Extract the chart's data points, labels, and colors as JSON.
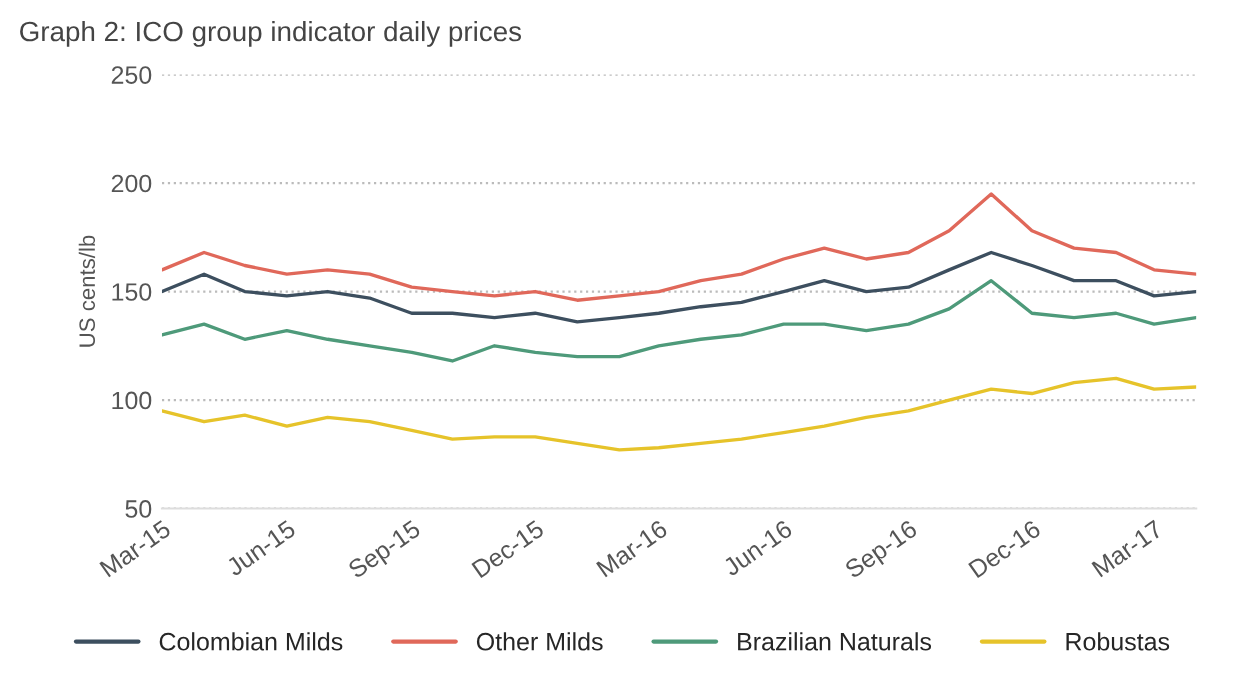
{
  "chart_data": {
    "type": "line",
    "title": "Graph 2: ICO group indicator daily prices",
    "ylabel": "US cents/lb",
    "x": [
      "2015-03",
      "2015-04",
      "2015-05",
      "2015-06",
      "2015-07",
      "2015-08",
      "2015-09",
      "2015-10",
      "2015-11",
      "2015-12",
      "2016-01",
      "2016-02",
      "2016-03",
      "2016-04",
      "2016-05",
      "2016-06",
      "2016-07",
      "2016-08",
      "2016-09",
      "2016-10",
      "2016-11",
      "2016-12",
      "2017-01",
      "2017-02",
      "2017-03",
      "2017-04"
    ],
    "series": [
      {
        "name": "Colombian Milds",
        "color": "#3d4f5f",
        "values": [
          150,
          158,
          150,
          148,
          150,
          147,
          140,
          140,
          138,
          140,
          136,
          138,
          140,
          143,
          145,
          150,
          155,
          150,
          152,
          160,
          168,
          162,
          155,
          155,
          148,
          150
        ]
      },
      {
        "name": "Other Milds",
        "color": "#e0685a",
        "values": [
          160,
          168,
          162,
          158,
          160,
          158,
          152,
          150,
          148,
          150,
          146,
          148,
          150,
          155,
          158,
          165,
          170,
          165,
          168,
          178,
          195,
          178,
          170,
          168,
          160,
          158
        ]
      },
      {
        "name": "Brazilian Naturals",
        "color": "#4e9a7a",
        "values": [
          130,
          135,
          128,
          132,
          128,
          125,
          122,
          118,
          125,
          122,
          120,
          120,
          125,
          128,
          130,
          135,
          135,
          132,
          135,
          142,
          155,
          140,
          138,
          140,
          135,
          138
        ]
      },
      {
        "name": "Robustas",
        "color": "#e6c32a",
        "values": [
          95,
          90,
          93,
          88,
          92,
          90,
          86,
          82,
          83,
          83,
          80,
          77,
          78,
          80,
          82,
          85,
          88,
          92,
          95,
          100,
          105,
          103,
          108,
          110,
          105,
          106
        ]
      }
    ],
    "ylim": [
      50,
      250
    ],
    "yticks": [
      50,
      100,
      150,
      200,
      250
    ],
    "xlim": [
      "2015-03",
      "2017-04"
    ],
    "xticks": [
      {
        "value": "2015-03",
        "label": "Mar-15"
      },
      {
        "value": "2015-06",
        "label": "Jun-15"
      },
      {
        "value": "2015-09",
        "label": "Sep-15"
      },
      {
        "value": "2015-12",
        "label": "Dec-15"
      },
      {
        "value": "2016-03",
        "label": "Mar-16"
      },
      {
        "value": "2016-06",
        "label": "Jun-16"
      },
      {
        "value": "2016-09",
        "label": "Sep-16"
      },
      {
        "value": "2016-12",
        "label": "Dec-16"
      },
      {
        "value": "2017-03",
        "label": "Mar-17"
      }
    ],
    "grid": "y",
    "legend": "bottom",
    "line_style": "solid"
  }
}
